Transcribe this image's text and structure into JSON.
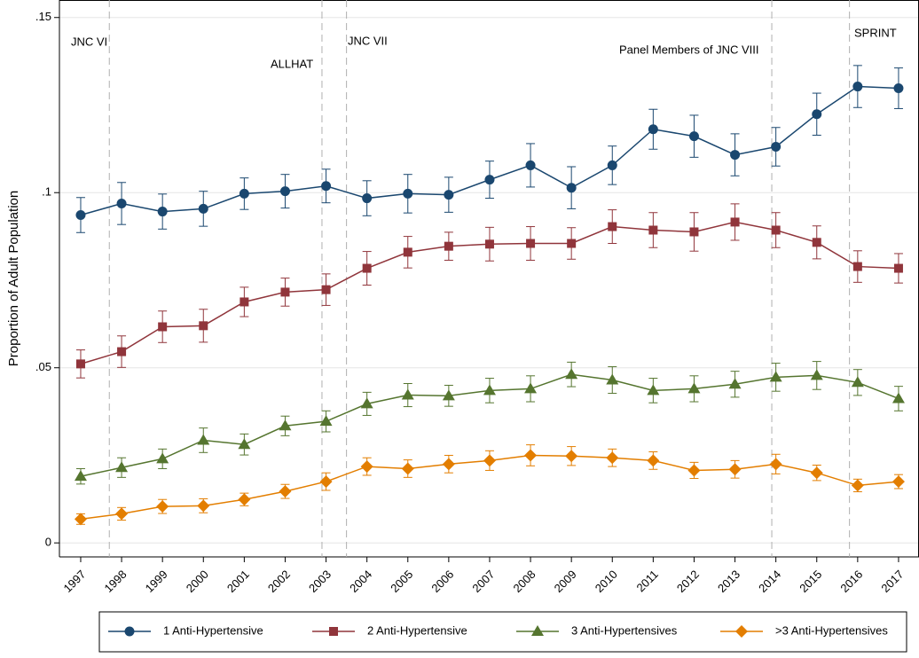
{
  "chart_data": {
    "type": "line",
    "y_label": "Proportion of Adult Population",
    "x": [
      1997,
      1998,
      1999,
      2000,
      2001,
      2002,
      2003,
      2004,
      2005,
      2006,
      2007,
      2008,
      2009,
      2010,
      2011,
      2012,
      2013,
      2014,
      2015,
      2016,
      2017
    ],
    "xlim": [
      1996.48,
      2017.5
    ],
    "xticks": [
      1997,
      1998,
      1999,
      2000,
      2001,
      2002,
      2003,
      2004,
      2005,
      2006,
      2007,
      2008,
      2009,
      2010,
      2011,
      2012,
      2013,
      2014,
      2015,
      2016,
      2017
    ],
    "ylim": [
      -0.004,
      0.155
    ],
    "yticks": [
      {
        "value": 0,
        "label": "0"
      },
      {
        "value": 0.05,
        "label": ".05"
      },
      {
        "value": 0.1,
        "label": ".1"
      },
      {
        "value": 0.15,
        "label": ".15"
      }
    ],
    "grid": true,
    "reference_lines": [
      1997.7,
      2002.9,
      2003.5,
      2013.9,
      2015.8
    ],
    "annotations": [
      "JNC VI",
      "ALLHAT",
      "JNC VII",
      "Panel Members of JNC VIII",
      "SPRINT"
    ],
    "series": [
      {
        "name": "1 Anti-Hypertensive",
        "color": "#1a476f",
        "marker": "circle",
        "values": [
          0.0936,
          0.0969,
          0.0946,
          0.0954,
          0.0997,
          0.1004,
          0.1019,
          0.0984,
          0.0997,
          0.0994,
          0.1037,
          0.1078,
          0.1014,
          0.1078,
          0.1181,
          0.1161,
          0.1108,
          0.1131,
          0.1224,
          0.1303,
          0.1298
        ],
        "errors": [
          0.005,
          0.006,
          0.005,
          0.005,
          0.0045,
          0.0048,
          0.0048,
          0.005,
          0.0055,
          0.005,
          0.0053,
          0.0062,
          0.006,
          0.0055,
          0.0057,
          0.006,
          0.006,
          0.0055,
          0.006,
          0.006,
          0.0058
        ]
      },
      {
        "name": "2 Anti-Hypertensive",
        "color": "#90353b",
        "marker": "square",
        "values": [
          0.0511,
          0.0546,
          0.0617,
          0.062,
          0.0688,
          0.0716,
          0.0723,
          0.0784,
          0.083,
          0.0847,
          0.0853,
          0.0855,
          0.0855,
          0.0903,
          0.0893,
          0.0888,
          0.0916,
          0.0893,
          0.0858,
          0.0789,
          0.0784
        ],
        "errors": [
          0.004,
          0.0045,
          0.0045,
          0.0047,
          0.0042,
          0.004,
          0.0045,
          0.0048,
          0.0045,
          0.004,
          0.0048,
          0.0048,
          0.0045,
          0.0048,
          0.005,
          0.0055,
          0.0052,
          0.005,
          0.0047,
          0.0045,
          0.0042
        ]
      },
      {
        "name": "3 Anti-Hypertensives",
        "color": "#55752f",
        "marker": "triangle",
        "values": [
          0.019,
          0.0215,
          0.024,
          0.0293,
          0.0281,
          0.0334,
          0.0347,
          0.0397,
          0.0422,
          0.042,
          0.0435,
          0.044,
          0.0481,
          0.0465,
          0.0435,
          0.044,
          0.0453,
          0.0473,
          0.0478,
          0.0458,
          0.0412
        ],
        "errors": [
          0.0022,
          0.0028,
          0.0028,
          0.0035,
          0.003,
          0.0028,
          0.003,
          0.0033,
          0.0033,
          0.003,
          0.0035,
          0.0037,
          0.0035,
          0.0038,
          0.0035,
          0.0037,
          0.0037,
          0.004,
          0.004,
          0.0037,
          0.0035
        ]
      },
      {
        "name": ">3 Anti-Hypertensives",
        "color": "#e37e00",
        "marker": "diamond",
        "values": [
          0.0068,
          0.0083,
          0.0104,
          0.0106,
          0.0124,
          0.0147,
          0.0175,
          0.0218,
          0.0212,
          0.0225,
          0.0235,
          0.025,
          0.0248,
          0.0243,
          0.0235,
          0.0207,
          0.021,
          0.0225,
          0.02,
          0.0164,
          0.0175
        ],
        "errors": [
          0.0015,
          0.0018,
          0.002,
          0.002,
          0.0018,
          0.002,
          0.0025,
          0.0025,
          0.0025,
          0.0025,
          0.0028,
          0.003,
          0.0027,
          0.0025,
          0.0025,
          0.0023,
          0.0025,
          0.0028,
          0.0022,
          0.0018,
          0.002
        ]
      }
    ]
  }
}
